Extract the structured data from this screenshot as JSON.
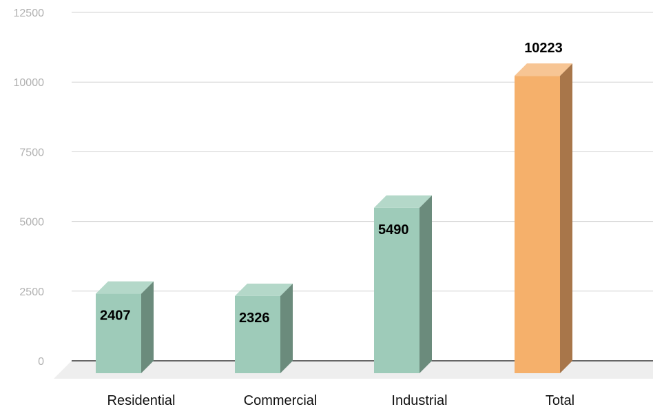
{
  "chart_data": {
    "type": "bar",
    "title": "",
    "xlabel": "",
    "ylabel": "",
    "ylim": [
      0,
      12500
    ],
    "yticks": [
      0,
      2500,
      5000,
      7500,
      10000,
      12500
    ],
    "categories": [
      "Residential",
      "Commercial",
      "Industrial",
      "Total"
    ],
    "values": [
      2407,
      2326,
      5490,
      10223
    ],
    "value_labels": [
      "2407",
      "2326",
      "5490",
      "10223"
    ],
    "grid": true,
    "style": "3d",
    "colors": {
      "component": "#9ecbb9",
      "component_side": "#6b8b7c",
      "component_top": "#b4d8c9",
      "total": "#f5b06b",
      "total_side": "#a8764a",
      "total_top": "#f7c594",
      "gridline": "#d0d0d0",
      "baseline": "#333333",
      "floor": "#eeeeee"
    }
  }
}
